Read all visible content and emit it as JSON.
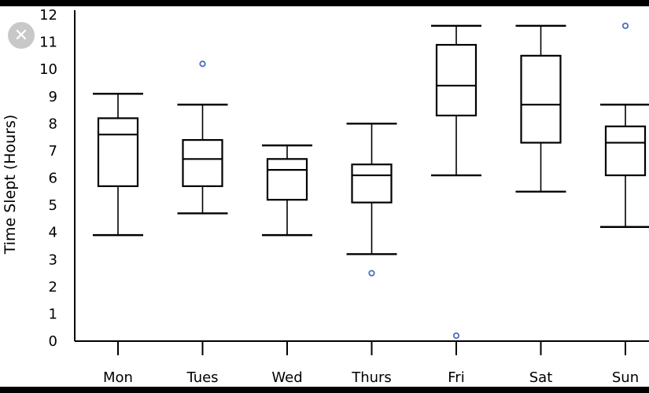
{
  "close_icon": "close-icon",
  "chart_data": {
    "type": "box",
    "xlabel": "",
    "ylabel": "Time Slept (Hours)",
    "ylim": [
      0,
      12
    ],
    "yticks": [
      "0",
      "1",
      "2",
      "3",
      "4",
      "5",
      "6",
      "7",
      "8",
      "9",
      "10",
      "11",
      "12"
    ],
    "categories": [
      "Mon",
      "Tues",
      "Wed",
      "Thurs",
      "Fri",
      "Sat",
      "Sun"
    ],
    "boxes": [
      {
        "min": 3.9,
        "q1": 5.7,
        "median": 7.6,
        "q3": 8.2,
        "max": 9.1,
        "outliers": []
      },
      {
        "min": 4.7,
        "q1": 5.7,
        "median": 6.7,
        "q3": 7.4,
        "max": 8.7,
        "outliers": [
          10.2
        ]
      },
      {
        "min": 3.9,
        "q1": 5.2,
        "median": 6.3,
        "q3": 6.7,
        "max": 7.2,
        "outliers": []
      },
      {
        "min": 3.2,
        "q1": 5.1,
        "median": 6.1,
        "q3": 6.5,
        "max": 8.0,
        "outliers": [
          2.5
        ]
      },
      {
        "min": 6.1,
        "q1": 8.3,
        "median": 9.4,
        "q3": 10.9,
        "max": 11.6,
        "outliers": [
          0.2
        ]
      },
      {
        "min": 5.5,
        "q1": 7.3,
        "median": 8.7,
        "q3": 10.5,
        "max": 11.6,
        "outliers": []
      },
      {
        "min": 4.2,
        "q1": 6.1,
        "median": 7.3,
        "q3": 7.9,
        "max": 8.7,
        "outliers": [
          11.6
        ]
      }
    ],
    "outlier_color": "#4a6fbf",
    "box_color": "#000000",
    "grid": false
  }
}
